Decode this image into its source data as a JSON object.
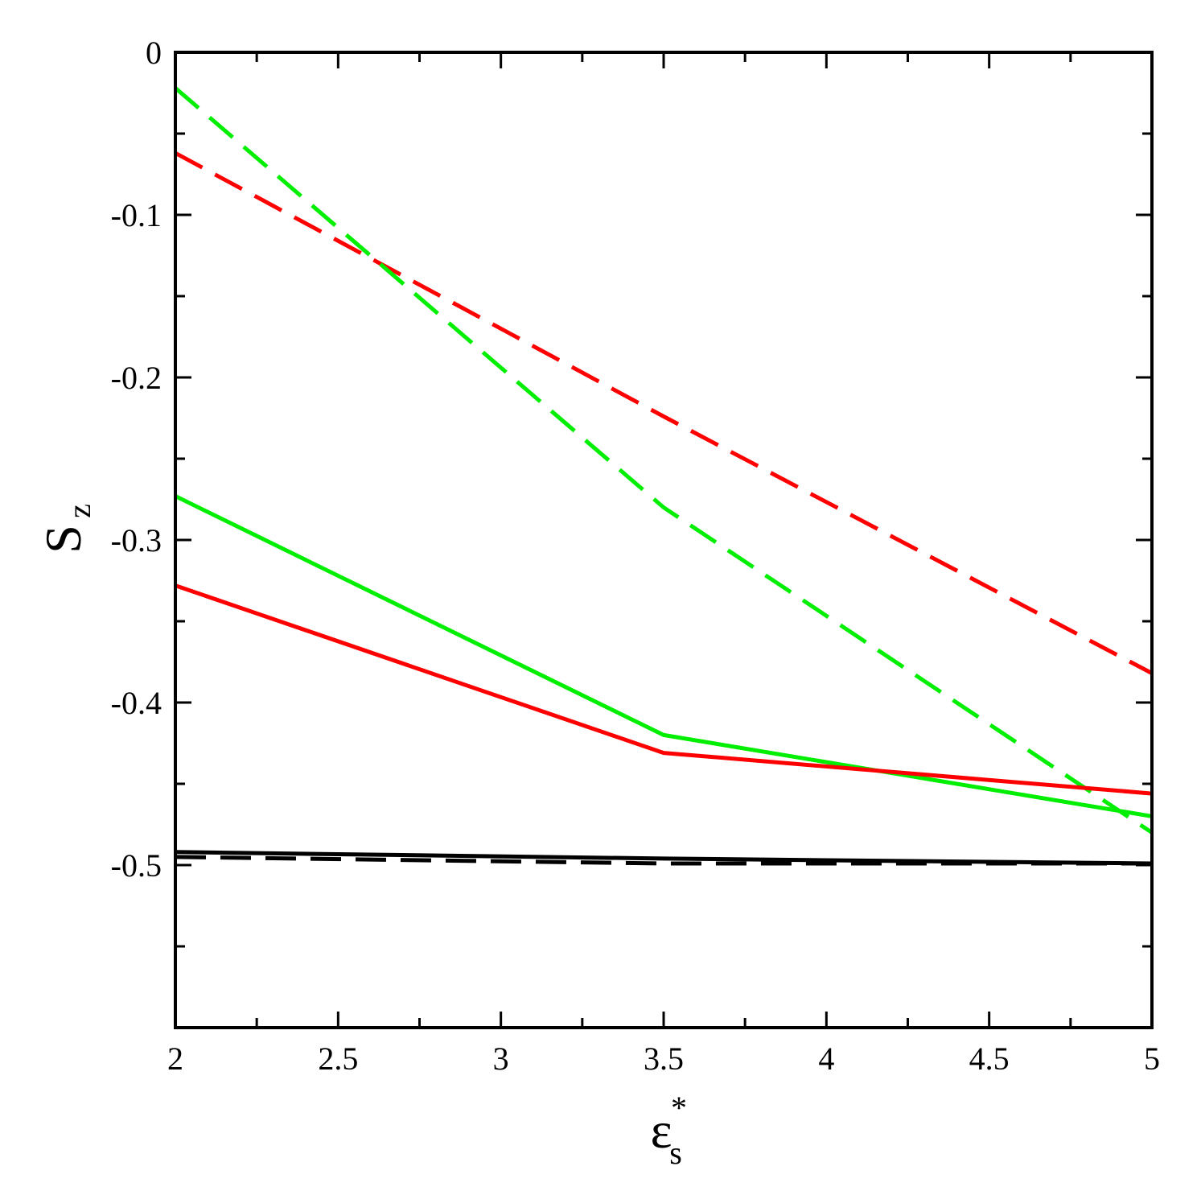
{
  "chart_data": {
    "type": "line",
    "title": "",
    "xlabel": {
      "main": "ε",
      "sup": "*",
      "sub": "s"
    },
    "ylabel": {
      "main": "S",
      "sub": "z"
    },
    "xlim": [
      2,
      5
    ],
    "ylim": [
      -0.6,
      0
    ],
    "x_ticks": [
      2,
      2.5,
      3,
      3.5,
      4,
      4.5,
      5
    ],
    "x_tick_labels": [
      "2",
      "2.5",
      "3",
      "3.5",
      "4",
      "4.5",
      "5"
    ],
    "y_ticks": [
      0,
      -0.1,
      -0.2,
      -0.3,
      -0.4,
      -0.5
    ],
    "y_tick_labels": [
      "0",
      "-0.1",
      "-0.2",
      "-0.3",
      "-0.4",
      "-0.5"
    ],
    "grid": false,
    "legend": "none",
    "series": [
      {
        "color": "#ff0000",
        "dash": "dashed",
        "x": [
          2,
          3.5,
          5
        ],
        "y": [
          -0.062,
          -0.224,
          -0.382
        ]
      },
      {
        "color": "#00ee00",
        "dash": "dashed",
        "x": [
          2,
          3.5,
          5
        ],
        "y": [
          -0.022,
          -0.28,
          -0.48
        ]
      },
      {
        "color": "#00ee00",
        "dash": "solid",
        "x": [
          2,
          3.5,
          5
        ],
        "y": [
          -0.273,
          -0.42,
          -0.47
        ]
      },
      {
        "color": "#ff0000",
        "dash": "solid",
        "x": [
          2,
          3.5,
          5
        ],
        "y": [
          -0.328,
          -0.431,
          -0.456
        ]
      },
      {
        "color": "#000000",
        "dash": "solid",
        "x": [
          2,
          3.5,
          5
        ],
        "y": [
          -0.492,
          -0.496,
          -0.499
        ]
      },
      {
        "color": "#000000",
        "dash": "dashed",
        "x": [
          2,
          3.5,
          5
        ],
        "y": [
          -0.495,
          -0.499,
          -0.499
        ]
      }
    ]
  }
}
